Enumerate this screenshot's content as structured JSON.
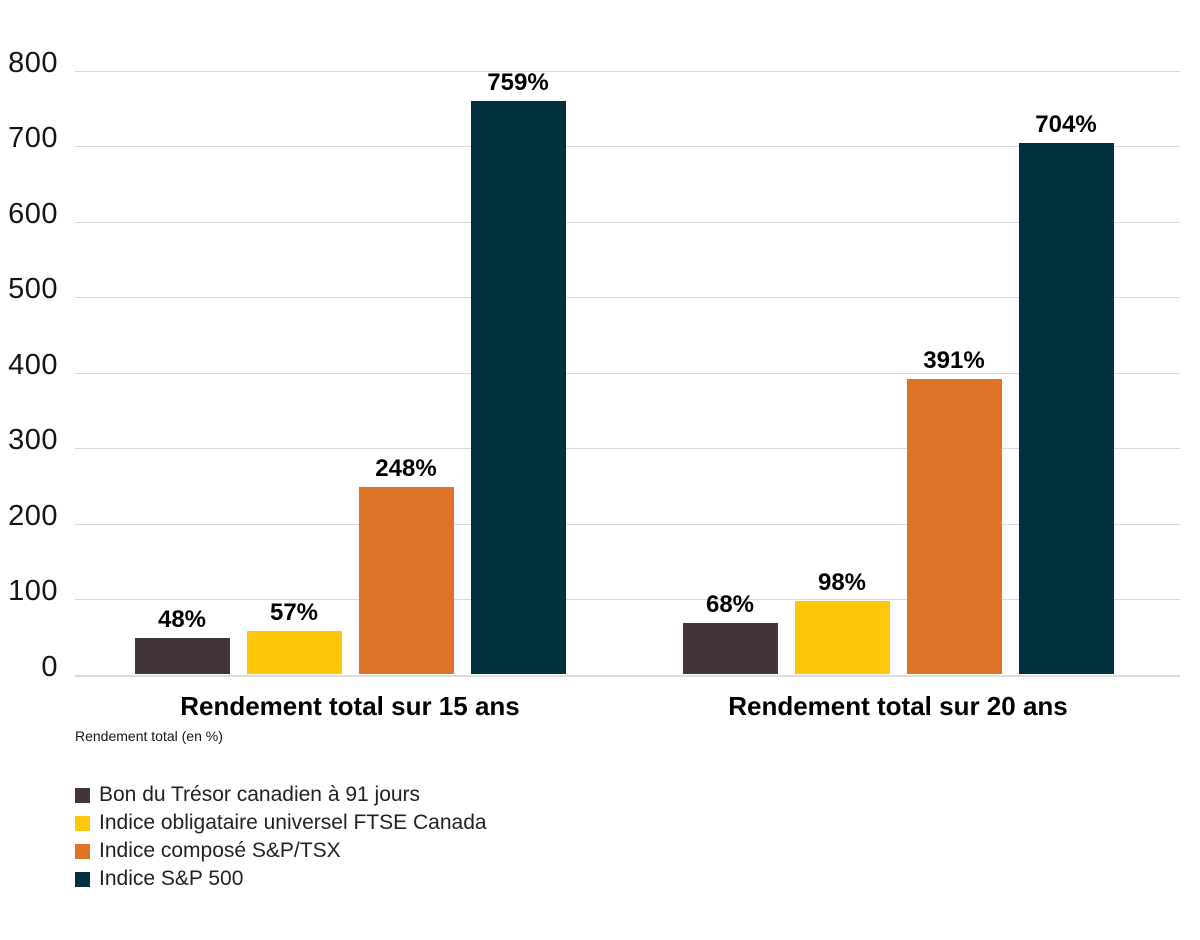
{
  "chart_data": {
    "type": "bar",
    "categories": [
      "Rendement total sur 15 ans",
      "Rendement total sur 20 ans"
    ],
    "series": [
      {
        "name": "Bon du Trésor canadien à 91 jours",
        "color": "#433538",
        "values": [
          48,
          68
        ]
      },
      {
        "name": "Indice obligataire universel FTSE Canada",
        "color": "#FFC60A",
        "values": [
          57,
          98
        ]
      },
      {
        "name": "Indice composé S&P/TSX",
        "color": "#DF7428",
        "values": [
          248,
          391
        ]
      },
      {
        "name": "Indice S&P 500",
        "color": "#03303E",
        "values": [
          759,
          704
        ]
      }
    ],
    "data_labels": {
      "suffix": "%",
      "values": [
        [
          "48%",
          "57%",
          "248%",
          "759%"
        ],
        [
          "68%",
          "98%",
          "391%",
          "704%"
        ]
      ]
    },
    "y_axis": {
      "min": 0,
      "max": 800,
      "tick_step": 100,
      "ticks": [
        0,
        100,
        200,
        300,
        400,
        500,
        600,
        700,
        800
      ]
    },
    "axis_caption": "Rendement total (en %)",
    "grid": true,
    "gridline_color": "#d9d9d9",
    "legend_position": "bottom-left"
  }
}
